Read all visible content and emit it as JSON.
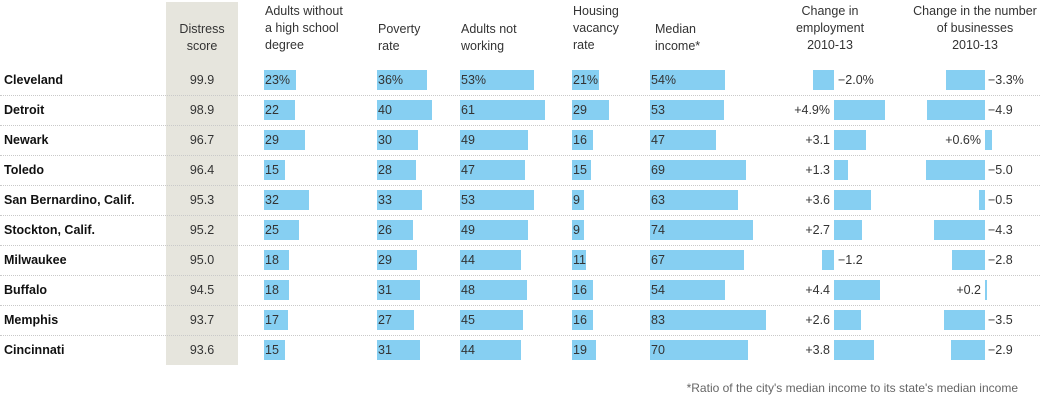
{
  "headers": {
    "distress": [
      "Distress",
      "score"
    ],
    "education": [
      "Adults without",
      "a high school",
      "degree"
    ],
    "poverty": [
      "Poverty",
      "rate"
    ],
    "notworking": [
      "Adults not",
      "working"
    ],
    "vacancy": [
      "Housing",
      "vacancy",
      "rate"
    ],
    "income": [
      "Median",
      "income*"
    ],
    "employment": [
      "Change in",
      "employment",
      "2010-13"
    ],
    "businesses": [
      "Change in the number",
      "of businesses",
      "2010-13"
    ]
  },
  "footnote": "*Ratio of the city's median income to its state's median income",
  "colors": {
    "bar": "#86cff2",
    "score_band": "#e6e5dd"
  },
  "chart_data": {
    "type": "table",
    "columns": [
      "Distress score",
      "Adults without a high school degree",
      "Poverty rate",
      "Adults not working",
      "Housing vacancy rate",
      "Median income*",
      "Change in employment 2010-13",
      "Change in the number of businesses 2010-13"
    ],
    "rows": [
      {
        "city": "Cleveland",
        "score": "99.9",
        "edu": 23,
        "edu_label": "23%",
        "pov": 36,
        "pov_label": "36%",
        "notwork": 53,
        "notwork_label": "53%",
        "vac": 21,
        "vac_label": "21%",
        "inc": 54,
        "inc_label": "54%",
        "emp": -2.0,
        "emp_label": "−2.0%",
        "bus": -3.3,
        "bus_label": "−3.3%"
      },
      {
        "city": "Detroit",
        "score": "98.9",
        "edu": 22,
        "edu_label": "22",
        "pov": 40,
        "pov_label": "40",
        "notwork": 61,
        "notwork_label": "61",
        "vac": 29,
        "vac_label": "29",
        "inc": 53,
        "inc_label": "53",
        "emp": 4.9,
        "emp_label": "+4.9%",
        "bus": -4.9,
        "bus_label": "−4.9"
      },
      {
        "city": "Newark",
        "score": "96.7",
        "edu": 29,
        "edu_label": "29",
        "pov": 30,
        "pov_label": "30",
        "notwork": 49,
        "notwork_label": "49",
        "vac": 16,
        "vac_label": "16",
        "inc": 47,
        "inc_label": "47",
        "emp": 3.1,
        "emp_label": "+3.1",
        "bus": 0.6,
        "bus_label": "+0.6%"
      },
      {
        "city": "Toledo",
        "score": "96.4",
        "edu": 15,
        "edu_label": "15",
        "pov": 28,
        "pov_label": "28",
        "notwork": 47,
        "notwork_label": "47",
        "vac": 15,
        "vac_label": "15",
        "inc": 69,
        "inc_label": "69",
        "emp": 1.3,
        "emp_label": "+1.3",
        "bus": -5.0,
        "bus_label": "−5.0"
      },
      {
        "city": "San Bernardino, Calif.",
        "score": "95.3",
        "edu": 32,
        "edu_label": "32",
        "pov": 33,
        "pov_label": "33",
        "notwork": 53,
        "notwork_label": "53",
        "vac": 9,
        "vac_label": "9",
        "inc": 63,
        "inc_label": "63",
        "emp": 3.6,
        "emp_label": "+3.6",
        "bus": -0.5,
        "bus_label": "−0.5"
      },
      {
        "city": "Stockton, Calif.",
        "score": "95.2",
        "edu": 25,
        "edu_label": "25",
        "pov": 26,
        "pov_label": "26",
        "notwork": 49,
        "notwork_label": "49",
        "vac": 9,
        "vac_label": "9",
        "inc": 74,
        "inc_label": "74",
        "emp": 2.7,
        "emp_label": "+2.7",
        "bus": -4.3,
        "bus_label": "−4.3"
      },
      {
        "city": "Milwaukee",
        "score": "95.0",
        "edu": 18,
        "edu_label": "18",
        "pov": 29,
        "pov_label": "29",
        "notwork": 44,
        "notwork_label": "44",
        "vac": 11,
        "vac_label": "11",
        "inc": 67,
        "inc_label": "67",
        "emp": -1.2,
        "emp_label": "−1.2",
        "bus": -2.8,
        "bus_label": "−2.8"
      },
      {
        "city": "Buffalo",
        "score": "94.5",
        "edu": 18,
        "edu_label": "18",
        "pov": 31,
        "pov_label": "31",
        "notwork": 48,
        "notwork_label": "48",
        "vac": 16,
        "vac_label": "16",
        "inc": 54,
        "inc_label": "54",
        "emp": 4.4,
        "emp_label": "+4.4",
        "bus": 0.2,
        "bus_label": "+0.2"
      },
      {
        "city": "Memphis",
        "score": "93.7",
        "edu": 17,
        "edu_label": "17",
        "pov": 27,
        "pov_label": "27",
        "notwork": 45,
        "notwork_label": "45",
        "vac": 16,
        "vac_label": "16",
        "inc": 83,
        "inc_label": "83",
        "emp": 2.6,
        "emp_label": "+2.6",
        "bus": -3.5,
        "bus_label": "−3.5"
      },
      {
        "city": "Cincinnati",
        "score": "93.6",
        "edu": 15,
        "edu_label": "15",
        "pov": 31,
        "pov_label": "31",
        "notwork": 44,
        "notwork_label": "44",
        "vac": 19,
        "vac_label": "19",
        "inc": 70,
        "inc_label": "70",
        "emp": 3.8,
        "emp_label": "+3.8",
        "bus": -2.9,
        "bus_label": "−2.9"
      }
    ]
  }
}
